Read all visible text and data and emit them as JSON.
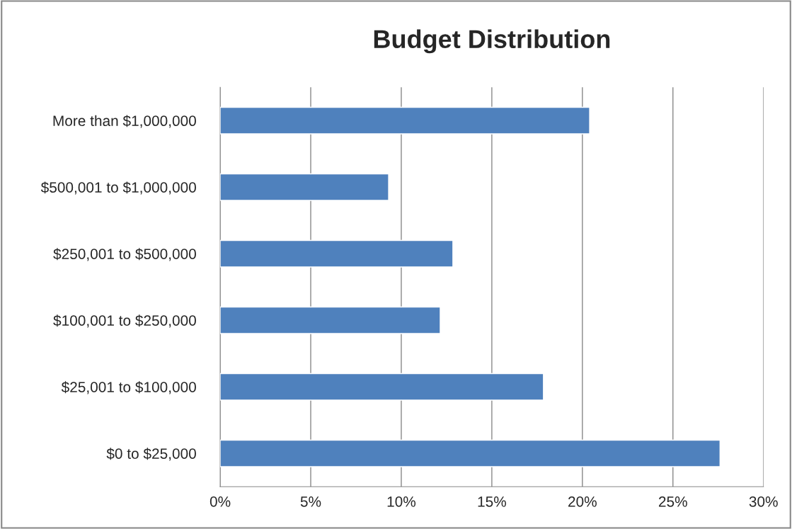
{
  "chart_data": {
    "type": "bar",
    "title": "Budget Distribution",
    "orientation": "horizontal",
    "categories": [
      "More than $1,000,000",
      "$500,001 to $1,000,000",
      "$250,001 to $500,000",
      "$100,001 to $250,000",
      "$25,001 to $100,000",
      "$0 to $25,000"
    ],
    "values": [
      20.4,
      9.3,
      12.85,
      12.15,
      17.85,
      27.6
    ],
    "color": "#4f81bd",
    "xlim": [
      0,
      30
    ],
    "xticks": [
      {
        "value": 0,
        "label": "0%"
      },
      {
        "value": 5,
        "label": "5%"
      },
      {
        "value": 10,
        "label": "10%"
      },
      {
        "value": 15,
        "label": "15%"
      },
      {
        "value": 20,
        "label": "20%"
      },
      {
        "value": 25,
        "label": "25%"
      },
      {
        "value": 30,
        "label": "30%"
      }
    ],
    "grid": "x",
    "legend": false
  }
}
